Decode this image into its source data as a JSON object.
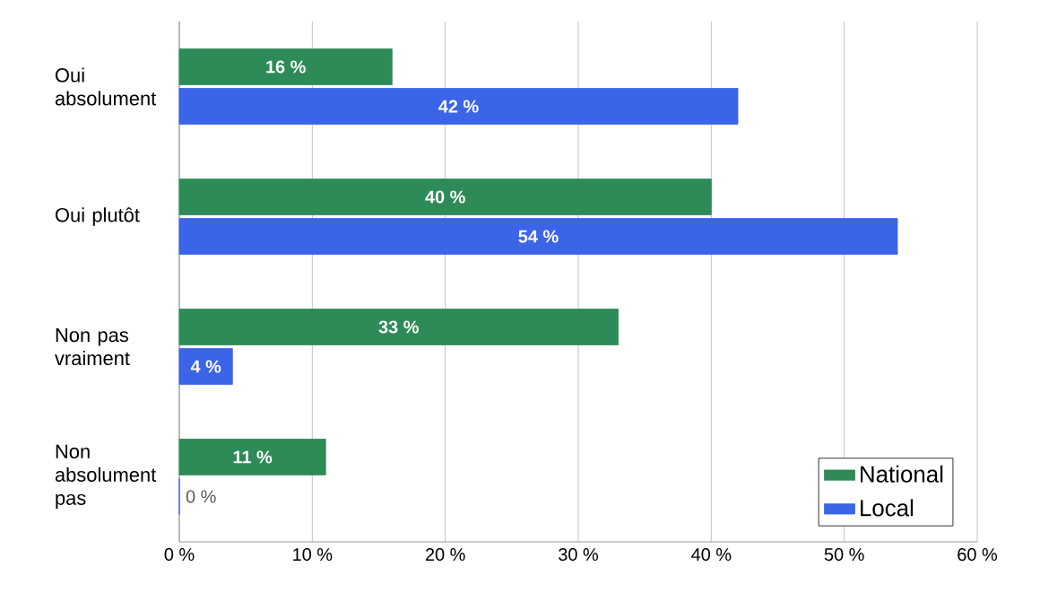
{
  "chart_data": {
    "type": "bar",
    "orientation": "horizontal",
    "categories": [
      "Oui absolument",
      "Oui plutôt",
      "Non pas vraiment",
      "Non absolument pas"
    ],
    "series": [
      {
        "name": "National",
        "color": "#2e8b57",
        "values": [
          16,
          40,
          33,
          11
        ],
        "value_labels": [
          "16 %",
          "40 %",
          "33 %",
          "11 %"
        ]
      },
      {
        "name": "Local",
        "color": "#3c64e6",
        "values": [
          42,
          54,
          4,
          0
        ],
        "value_labels": [
          "42 %",
          "54 %",
          "4 %",
          "0 %"
        ]
      }
    ],
    "xlim": [
      0,
      60
    ],
    "xticks": [
      {
        "value": 0,
        "label": "0 %"
      },
      {
        "value": 10,
        "label": "10 %"
      },
      {
        "value": 20,
        "label": "20 %"
      },
      {
        "value": 30,
        "label": "30 %"
      },
      {
        "value": 40,
        "label": "40 %"
      },
      {
        "value": 50,
        "label": "50 %"
      },
      {
        "value": 60,
        "label": "60 %"
      }
    ],
    "grid": "x",
    "legend": "bottom right"
  }
}
